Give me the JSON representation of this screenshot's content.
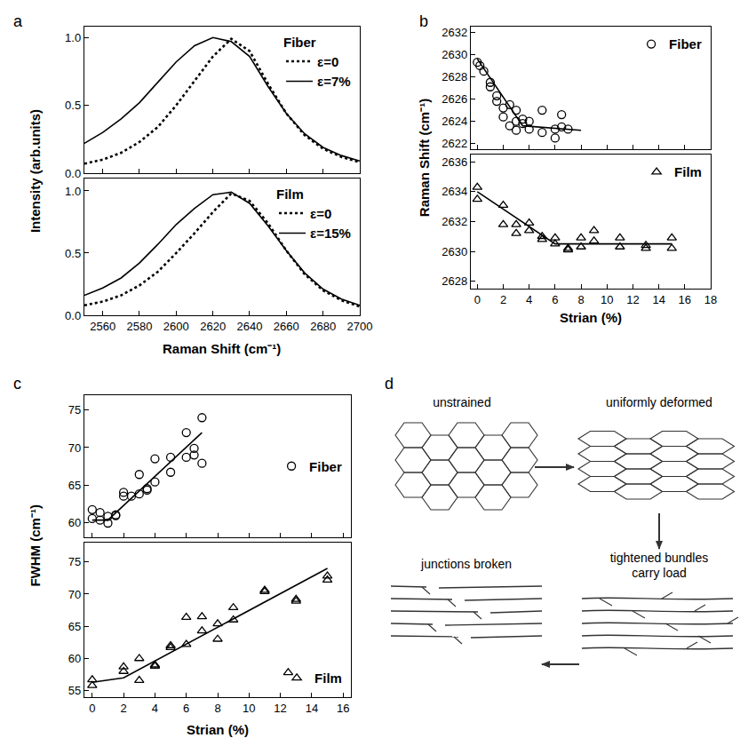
{
  "chart_data": [
    {
      "panel": "a",
      "type": "line",
      "title": "Fiber",
      "y_label": "Intensity (arb.units)",
      "tick_labels": "y",
      "legend": "top right",
      "x": [
        2550,
        2560,
        2570,
        2580,
        2590,
        2600,
        2610,
        2620,
        2630,
        2640,
        2650,
        2660,
        2670,
        2680,
        2690,
        2700
      ],
      "xlim": [
        2550,
        2700
      ],
      "xticks": [
        2560,
        2580,
        2600,
        2620,
        2640,
        2660,
        2680,
        2700
      ],
      "ylim": [
        0,
        1.08
      ],
      "yticks": [
        {
          "value": 0,
          "label": "0.0"
        },
        {
          "value": 0.5,
          "label": "0.5"
        },
        {
          "value": 1,
          "label": "1.0"
        }
      ],
      "series": [
        {
          "name": "ε=0",
          "color": "#000000",
          "line_style": "dotted",
          "values": [
            0.07,
            0.1,
            0.15,
            0.23,
            0.34,
            0.5,
            0.68,
            0.86,
            0.99,
            0.9,
            0.66,
            0.44,
            0.28,
            0.18,
            0.12,
            0.08
          ]
        },
        {
          "name": "ε=7%",
          "color": "#000000",
          "line_style": "solid",
          "values": [
            0.22,
            0.3,
            0.4,
            0.52,
            0.67,
            0.82,
            0.94,
            1.0,
            0.97,
            0.86,
            0.64,
            0.44,
            0.29,
            0.19,
            0.13,
            0.09
          ]
        }
      ]
    },
    {
      "panel": "a",
      "type": "line",
      "title": "Film",
      "x_label": "Raman Shift (cm⁻¹)",
      "legend": "top right",
      "x": [
        2550,
        2560,
        2570,
        2580,
        2590,
        2600,
        2610,
        2620,
        2630,
        2640,
        2650,
        2660,
        2670,
        2680,
        2690,
        2700
      ],
      "xlim": [
        2550,
        2700
      ],
      "xticks": [
        2560,
        2580,
        2600,
        2620,
        2640,
        2660,
        2680,
        2700
      ],
      "ylim": [
        0,
        1.1
      ],
      "yticks": [
        {
          "value": 0,
          "label": "0.0"
        },
        {
          "value": 0.5,
          "label": "0.5"
        },
        {
          "value": 1,
          "label": "1.0"
        }
      ],
      "series": [
        {
          "name": "ε=0",
          "color": "#000000",
          "line_style": "dotted",
          "values": [
            0.08,
            0.11,
            0.16,
            0.24,
            0.35,
            0.5,
            0.66,
            0.83,
            0.98,
            0.92,
            0.74,
            0.52,
            0.33,
            0.2,
            0.12,
            0.07
          ]
        },
        {
          "name": "ε=15%",
          "color": "#000000",
          "line_style": "solid",
          "values": [
            0.16,
            0.22,
            0.3,
            0.42,
            0.57,
            0.73,
            0.86,
            0.97,
            0.99,
            0.9,
            0.72,
            0.52,
            0.34,
            0.21,
            0.13,
            0.08
          ]
        }
      ]
    },
    {
      "panel": "b",
      "type": "scatter",
      "y_label": "Raman Shift (cm⁻¹)",
      "tick_labels": "y",
      "legend": "top right",
      "xlim": [
        -0.5,
        18
      ],
      "xticks": [
        0,
        2,
        4,
        6,
        8,
        10,
        12,
        14,
        16,
        18
      ],
      "ylim": [
        2621.5,
        2632.5
      ],
      "yticks": [
        2622,
        2624,
        2626,
        2628,
        2630,
        2632
      ],
      "series": [
        {
          "name": "Fiber",
          "type": "scatter",
          "marker": "circle-open",
          "color": "#000000",
          "x": [
            0,
            0.2,
            0.5,
            1,
            1,
            1.5,
            1.5,
            2,
            2,
            2.5,
            2.5,
            3,
            3,
            3,
            3.5,
            3.5,
            4,
            4,
            5,
            5,
            6,
            6,
            6.5,
            6.5,
            7
          ],
          "values": [
            2629.3,
            2629,
            2628.5,
            2627.5,
            2627.1,
            2626.3,
            2625.8,
            2625.2,
            2624.4,
            2625.5,
            2623.6,
            2625,
            2624,
            2623.2,
            2624.2,
            2623.8,
            2624,
            2623.3,
            2625,
            2623,
            2623.3,
            2622.5,
            2624.6,
            2623.5,
            2623.3
          ]
        },
        {
          "type": "line",
          "color": "#000000",
          "line_style": "solid",
          "x": [
            0,
            3.5,
            8
          ],
          "values": [
            2629.6,
            2623.6,
            2623.2
          ]
        }
      ]
    },
    {
      "panel": "b",
      "type": "scatter",
      "x_label": "Strian (%)",
      "legend": "top right",
      "xlim": [
        -0.5,
        18
      ],
      "xticks": [
        0,
        2,
        4,
        6,
        8,
        10,
        12,
        14,
        16,
        18
      ],
      "ylim": [
        2627.5,
        2636.5
      ],
      "yticks": [
        2628,
        2630,
        2632,
        2634,
        2636
      ],
      "series": [
        {
          "name": "Film",
          "type": "scatter",
          "marker": "triangle-up-open",
          "color": "#000000",
          "x": [
            0,
            0,
            2,
            2,
            3,
            3,
            4,
            4,
            5,
            5,
            6,
            6,
            7,
            7,
            8,
            8,
            9,
            9,
            11,
            11,
            13,
            13,
            15,
            15
          ],
          "values": [
            2634.3,
            2633.5,
            2633.1,
            2631.8,
            2631.8,
            2631.2,
            2631.9,
            2631.4,
            2631,
            2630.8,
            2630.9,
            2630.5,
            2630.2,
            2630.1,
            2630.9,
            2630.3,
            2631.4,
            2630.7,
            2630.9,
            2630.3,
            2630.4,
            2630.2,
            2630.9,
            2630.2
          ]
        },
        {
          "type": "line",
          "color": "#000000",
          "line_style": "solid",
          "x": [
            0,
            6,
            15
          ],
          "values": [
            2634,
            2630.5,
            2630.5
          ]
        }
      ]
    },
    {
      "panel": "c",
      "type": "scatter",
      "y_label": "FWHM (cm⁻¹)",
      "tick_labels": "y",
      "legend": "right",
      "xlim": [
        -0.5,
        16.5
      ],
      "xticks": [
        0,
        2,
        4,
        6,
        8,
        10,
        12,
        14,
        16
      ],
      "ylim": [
        58,
        77
      ],
      "yticks": [
        60,
        65,
        70,
        75
      ],
      "series": [
        {
          "name": "Fiber",
          "type": "scatter",
          "marker": "circle-open",
          "color": "#000000",
          "x": [
            0,
            0,
            0.5,
            0.5,
            1,
            1,
            1.5,
            1.5,
            2,
            2,
            2.5,
            3,
            3,
            3.5,
            3.5,
            4,
            4,
            5,
            5,
            6,
            6,
            6.5,
            6.5,
            7,
            7
          ],
          "values": [
            60.5,
            61.7,
            61.3,
            60.3,
            60.8,
            59.9,
            61,
            60.9,
            64,
            63.5,
            63.5,
            66.4,
            63.8,
            64.5,
            64.3,
            68.5,
            65.4,
            68.7,
            66.7,
            72,
            68.7,
            69.9,
            69,
            74,
            67.9
          ]
        },
        {
          "type": "line",
          "color": "#000000",
          "line_style": "solid",
          "x": [
            0,
            1,
            7
          ],
          "values": [
            60.3,
            60.3,
            72
          ]
        }
      ]
    },
    {
      "panel": "c",
      "type": "scatter",
      "x_label": "Strian (%)",
      "legend": "bottom right",
      "xlim": [
        -0.5,
        16.5
      ],
      "xticks": [
        0,
        2,
        4,
        6,
        8,
        10,
        12,
        14,
        16
      ],
      "ylim": [
        54,
        78
      ],
      "yticks": [
        55,
        60,
        65,
        70,
        75
      ],
      "series": [
        {
          "name": "Film",
          "type": "scatter",
          "marker": "triangle-up-open",
          "color": "#000000",
          "x": [
            0,
            0,
            2,
            2,
            3,
            3,
            4,
            4,
            5,
            5,
            6,
            6,
            7,
            7,
            8,
            8,
            9,
            9,
            11,
            11,
            12.5,
            13,
            13,
            15,
            15
          ],
          "values": [
            56.7,
            55.8,
            58.7,
            58,
            60,
            56.6,
            59,
            58.8,
            62,
            61.7,
            66.4,
            62.2,
            66.5,
            64.3,
            65.4,
            63,
            67.9,
            66,
            70.6,
            70.4,
            57.8,
            69.2,
            68.9,
            72.8,
            72.2
          ]
        },
        {
          "type": "line",
          "color": "#000000",
          "line_style": "solid",
          "x": [
            0,
            2,
            15
          ],
          "values": [
            56.3,
            57,
            74
          ]
        }
      ]
    }
  ],
  "diagram": {
    "panel": "d",
    "stages": [
      {
        "label": "unstrained"
      },
      {
        "label": "uniformly deformed"
      },
      {
        "label": "tightened bundles carry load"
      },
      {
        "label": "junctions broken"
      }
    ]
  }
}
